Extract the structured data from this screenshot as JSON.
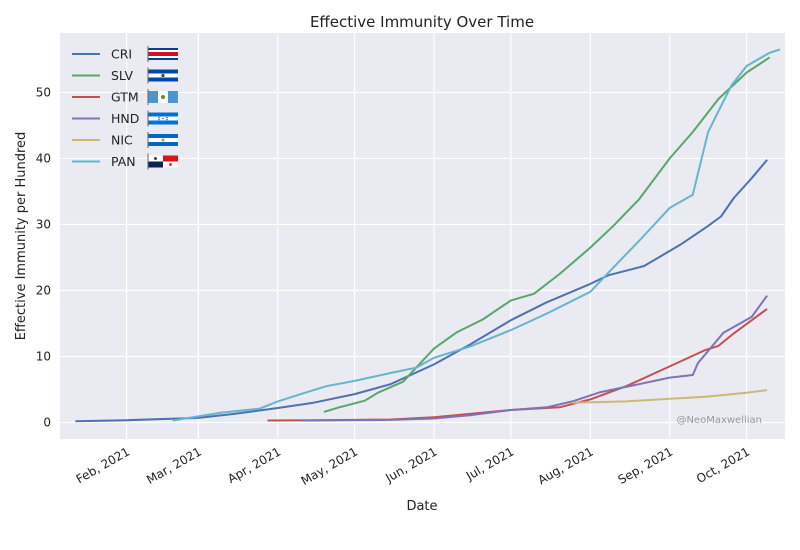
{
  "chart_data": {
    "type": "line",
    "title": "Effective Immunity Over Time",
    "xlabel": "Date",
    "ylabel": "Effective Immunity per Hundred",
    "x_ticks": [
      "Feb, 2021",
      "Mar, 2021",
      "Apr, 2021",
      "May, 2021",
      "Jun, 2021",
      "Jul, 2021",
      "Aug, 2021",
      "Sep, 2021",
      "Oct, 2021"
    ],
    "xlim": [
      "2021-01-06",
      "2021-10-16"
    ],
    "ylim": [
      -2.5,
      59
    ],
    "y_ticks": [
      0,
      10,
      20,
      30,
      40,
      50
    ],
    "grid": true,
    "legend_position": "top-left",
    "watermark": "@NeoMaxwellian",
    "colors": {
      "background": "#eaeaf2",
      "grid": "#ffffff"
    },
    "series": [
      {
        "name": "CRI",
        "color": "#4c72b0",
        "flag_icon": "costa-rica-flag-icon",
        "points": [
          [
            "2021-01-12",
            0.2
          ],
          [
            "2021-02-01",
            0.35
          ],
          [
            "2021-03-01",
            0.7
          ],
          [
            "2021-03-15",
            1.3
          ],
          [
            "2021-04-01",
            2.2
          ],
          [
            "2021-04-15",
            3.0
          ],
          [
            "2021-05-01",
            4.3
          ],
          [
            "2021-05-15",
            5.8
          ],
          [
            "2021-06-01",
            8.8
          ],
          [
            "2021-06-15",
            11.8
          ],
          [
            "2021-07-01",
            15.5
          ],
          [
            "2021-07-15",
            18.2
          ],
          [
            "2021-08-01",
            21.0
          ],
          [
            "2021-08-08",
            22.3
          ],
          [
            "2021-08-22",
            23.7
          ],
          [
            "2021-09-05",
            26.9
          ],
          [
            "2021-09-15",
            29.5
          ],
          [
            "2021-09-21",
            31.2
          ],
          [
            "2021-09-26",
            34.0
          ],
          [
            "2021-10-03",
            37.0
          ],
          [
            "2021-10-09",
            39.8
          ]
        ]
      },
      {
        "name": "SLV",
        "color": "#55a868",
        "flag_icon": "el-salvador-flag-icon",
        "points": [
          [
            "2021-04-19",
            1.6
          ],
          [
            "2021-04-25",
            2.3
          ],
          [
            "2021-05-05",
            3.3
          ],
          [
            "2021-05-10",
            4.5
          ],
          [
            "2021-05-20",
            6.2
          ],
          [
            "2021-05-25",
            8.3
          ],
          [
            "2021-06-01",
            11.2
          ],
          [
            "2021-06-10",
            13.7
          ],
          [
            "2021-06-20",
            15.6
          ],
          [
            "2021-07-01",
            18.5
          ],
          [
            "2021-07-10",
            19.5
          ],
          [
            "2021-07-20",
            22.5
          ],
          [
            "2021-08-01",
            26.5
          ],
          [
            "2021-08-10",
            29.8
          ],
          [
            "2021-08-20",
            33.8
          ],
          [
            "2021-09-01",
            40.0
          ],
          [
            "2021-09-10",
            44.0
          ],
          [
            "2021-09-20",
            49.0
          ],
          [
            "2021-10-01",
            53.0
          ],
          [
            "2021-10-10",
            55.3
          ]
        ]
      },
      {
        "name": "GTM",
        "color": "#c44e52",
        "flag_icon": "guatemala-flag-icon",
        "points": [
          [
            "2021-03-28",
            0.3
          ],
          [
            "2021-04-15",
            0.35
          ],
          [
            "2021-05-15",
            0.45
          ],
          [
            "2021-06-01",
            0.8
          ],
          [
            "2021-06-15",
            1.3
          ],
          [
            "2021-07-01",
            1.9
          ],
          [
            "2021-07-20",
            2.3
          ],
          [
            "2021-08-01",
            3.5
          ],
          [
            "2021-08-15",
            5.5
          ],
          [
            "2021-09-01",
            8.5
          ],
          [
            "2021-09-15",
            11.0
          ],
          [
            "2021-09-20",
            11.6
          ],
          [
            "2021-09-26",
            13.5
          ],
          [
            "2021-10-09",
            17.2
          ]
        ]
      },
      {
        "name": "HND",
        "color": "#8172b2",
        "flag_icon": "honduras-flag-icon",
        "points": [
          [
            "2021-04-10",
            0.3
          ],
          [
            "2021-05-15",
            0.4
          ],
          [
            "2021-06-01",
            0.6
          ],
          [
            "2021-06-15",
            1.1
          ],
          [
            "2021-07-01",
            1.9
          ],
          [
            "2021-07-15",
            2.3
          ],
          [
            "2021-07-25",
            3.2
          ],
          [
            "2021-08-05",
            4.6
          ],
          [
            "2021-08-20",
            5.8
          ],
          [
            "2021-09-01",
            6.8
          ],
          [
            "2021-09-10",
            7.2
          ],
          [
            "2021-09-12",
            9.0
          ],
          [
            "2021-09-22",
            13.6
          ],
          [
            "2021-10-03",
            16.0
          ],
          [
            "2021-10-09",
            19.2
          ]
        ]
      },
      {
        "name": "NIC",
        "color": "#ccb974",
        "flag_icon": "nicaragua-flag-icon",
        "points": [
          [
            "2021-07-25",
            3.0
          ],
          [
            "2021-08-15",
            3.2
          ],
          [
            "2021-09-01",
            3.6
          ],
          [
            "2021-09-15",
            3.9
          ],
          [
            "2021-10-01",
            4.5
          ],
          [
            "2021-10-09",
            4.9
          ]
        ]
      },
      {
        "name": "PAN",
        "color": "#64b5cd",
        "flag_icon": "panama-flag-icon",
        "points": [
          [
            "2021-02-19",
            0.3
          ],
          [
            "2021-03-10",
            1.5
          ],
          [
            "2021-03-25",
            2.1
          ],
          [
            "2021-04-01",
            3.2
          ],
          [
            "2021-04-10",
            4.3
          ],
          [
            "2021-04-20",
            5.5
          ],
          [
            "2021-05-01",
            6.3
          ],
          [
            "2021-05-15",
            7.5
          ],
          [
            "2021-05-25",
            8.3
          ],
          [
            "2021-06-01",
            9.8
          ],
          [
            "2021-06-15",
            11.5
          ],
          [
            "2021-07-01",
            14.0
          ],
          [
            "2021-07-15",
            16.5
          ],
          [
            "2021-08-01",
            19.8
          ],
          [
            "2021-08-10",
            23.5
          ],
          [
            "2021-08-20",
            27.5
          ],
          [
            "2021-09-01",
            32.5
          ],
          [
            "2021-09-10",
            34.5
          ],
          [
            "2021-09-16",
            44.0
          ],
          [
            "2021-09-25",
            51.0
          ],
          [
            "2021-10-01",
            54.0
          ],
          [
            "2021-10-10",
            56.0
          ],
          [
            "2021-10-14",
            56.5
          ]
        ]
      }
    ]
  }
}
